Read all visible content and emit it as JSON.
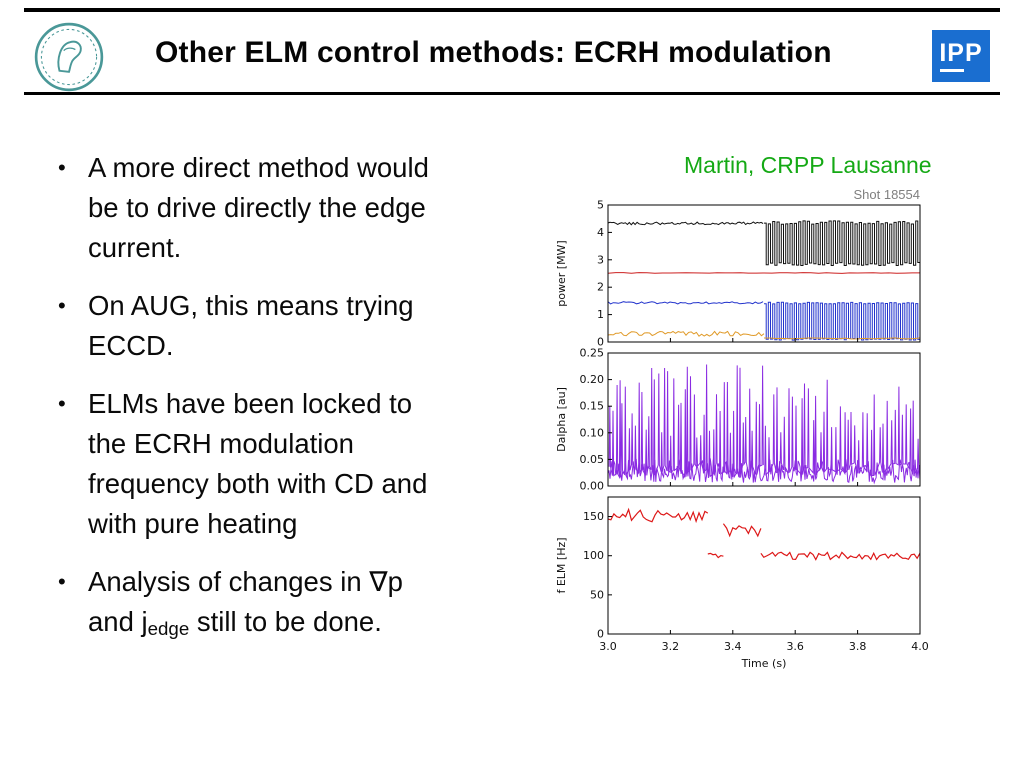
{
  "slide": {
    "title": "Other ELM control methods: ECRH modulation",
    "attribution": "Martin, CRPP Lausanne",
    "shot_label": "Shot 18554",
    "ipp_logo_text": "IPP",
    "logos": {
      "left": "max-planck-society-logo",
      "right": "ipp-logo"
    }
  },
  "colors": {
    "attribution_green": "#15a915",
    "ipp_blue": "#1a6ed0",
    "mpg_teal": "#4a9898",
    "dalpha_purple": "#8a2be2",
    "felm_red": "#dd1818"
  },
  "bullets": [
    {
      "lines": [
        [
          {
            "t": "A more direct method would"
          }
        ],
        [
          {
            "t": "be to drive directly the edge"
          }
        ],
        [
          {
            "t": "current."
          }
        ]
      ]
    },
    {
      "lines": [
        [
          {
            "t": "On AUG, this means trying"
          }
        ],
        [
          {
            "t": "ECCD."
          }
        ]
      ]
    },
    {
      "lines": [
        [
          {
            "t": "ELMs have been locked to"
          }
        ],
        [
          {
            "t": "the ECRH modulation"
          }
        ],
        [
          {
            "t": "frequency both with CD and"
          }
        ],
        [
          {
            "t": "with pure heating"
          }
        ]
      ]
    },
    {
      "lines": [
        [
          {
            "t": "Analysis of changes in ∇p"
          }
        ],
        [
          {
            "t": "and j"
          },
          {
            "t": "edge",
            "sub": true
          },
          {
            "t": " still to be done."
          }
        ]
      ]
    }
  ],
  "chart_data": [
    {
      "type": "line",
      "title": "",
      "ylabel": "power [MW]",
      "ylim": [
        0,
        5
      ],
      "yticks": [
        "0",
        "1",
        "2",
        "3",
        "4",
        "5"
      ],
      "xlim": [
        3.0,
        4.0
      ],
      "xticks": [
        "3.0",
        "3.2",
        "3.4",
        "3.6",
        "3.8",
        "4.0"
      ],
      "show_xlabels": false,
      "series": [
        {
          "name": "NBI power (black, ~4.3 MW steady then modulated 2.8-4.4 MW after t=3.5s)",
          "color": "#111111",
          "width": 1,
          "segments": [
            {
              "kind": "noisy",
              "x0": 3.0,
              "x1": 3.497,
              "y": 4.33,
              "amp": 0.05,
              "n": 80
            },
            {
              "kind": "square",
              "x0": 3.5,
              "x1": 4.0,
              "lo": 2.78,
              "hi": 4.42,
              "cycles": 36,
              "jit": 0.12
            }
          ]
        },
        {
          "name": "constant power level (red, 2.5 MW)",
          "color": "#cc2020",
          "width": 1,
          "segments": [
            {
              "kind": "noisy",
              "x0": 3.0,
              "x1": 4.0,
              "y": 2.52,
              "amp": 0.015,
              "n": 40
            }
          ]
        },
        {
          "name": "ECRH power (blue, ~1.45 MW then modulated 0-1.45 MW after t=3.5s)",
          "color": "#2233cc",
          "width": 1,
          "segments": [
            {
              "kind": "noisy",
              "x0": 3.0,
              "x1": 3.497,
              "y": 1.43,
              "amp": 0.04,
              "n": 60
            },
            {
              "kind": "square",
              "x0": 3.5,
              "x1": 4.0,
              "lo": 0.07,
              "hi": 1.45,
              "cycles": 36,
              "jit": 0.06
            }
          ]
        },
        {
          "name": "radiated power (orange, ~0.3 MW then ~0.13 MW)",
          "color": "#e09a28",
          "width": 1,
          "segments": [
            {
              "kind": "noisy",
              "x0": 3.0,
              "x1": 3.5,
              "y": 0.3,
              "amp": 0.09,
              "n": 60
            },
            {
              "kind": "noisy",
              "x0": 3.5,
              "x1": 4.0,
              "y": 0.13,
              "amp": 0.02,
              "n": 25
            }
          ]
        }
      ]
    },
    {
      "type": "line",
      "title": "",
      "ylabel": "Dalpha [au]",
      "ylim": [
        0,
        0.25
      ],
      "yticks": [
        "0.00",
        "0.05",
        "0.10",
        "0.15",
        "0.20",
        "0.25"
      ],
      "xlim": [
        3.0,
        4.0
      ],
      "xticks": [
        "3.0",
        "3.2",
        "3.4",
        "3.6",
        "3.8",
        "4.0"
      ],
      "show_xlabels": false,
      "series": [
        {
          "name": "Dalpha baseline (~0.03 au)",
          "color": "#8a2be2",
          "width": 1,
          "segments": [
            {
              "kind": "noisy",
              "x0": 3.0,
              "x1": 4.0,
              "y": 0.028,
              "amp": 0.022,
              "n": 320
            }
          ]
        },
        {
          "name": "ELM spikes (peaks 0.08-0.23 au)",
          "color": "#8a2be2",
          "width": 1,
          "segments": [
            {
              "kind": "spikes",
              "x0": 3.0,
              "x1": 3.5,
              "base": 0.03,
              "amp": 0.015,
              "hmin": 0.09,
              "hmax": 0.23,
              "count": 48
            },
            {
              "kind": "spikes",
              "x0": 3.5,
              "x1": 4.0,
              "base": 0.03,
              "amp": 0.015,
              "hmin": 0.08,
              "hmax": 0.2,
              "count": 40
            }
          ]
        }
      ]
    },
    {
      "type": "line",
      "title": "",
      "ylabel": "f ELM [Hz]",
      "ylim": [
        0,
        175
      ],
      "yticks": [
        "0",
        "50",
        "100",
        "150"
      ],
      "xlim": [
        3.0,
        4.0
      ],
      "xticks": [
        "3.0",
        "3.2",
        "3.4",
        "3.6",
        "3.8",
        "4.0"
      ],
      "show_xlabels": true,
      "xlabel": "Time (s)",
      "series": [
        {
          "name": "ELM frequency (~150 Hz before t=3.5s, locks to ~100 Hz after)",
          "color": "#dd1818",
          "width": 1.2,
          "segments": [
            {
              "kind": "noisy",
              "x0": 3.0,
              "x1": 3.32,
              "y": 152,
              "amp": 9,
              "n": 34
            },
            {
              "kind": "noisy",
              "x0": 3.32,
              "x1": 3.37,
              "y": 103,
              "amp": 6,
              "n": 6
            },
            {
              "kind": "noisy",
              "x0": 3.37,
              "x1": 3.49,
              "y": 133,
              "amp": 9,
              "n": 12
            },
            {
              "kind": "noisy",
              "x0": 3.49,
              "x1": 4.0,
              "y": 100,
              "amp": 5,
              "n": 55
            }
          ]
        }
      ]
    }
  ]
}
